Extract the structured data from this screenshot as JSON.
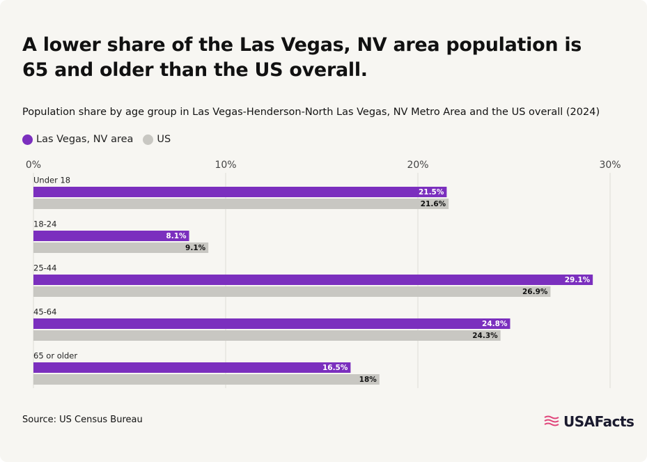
{
  "chart_data": {
    "type": "hbar",
    "title": "A lower share of the Las Vegas, NV area population is 65 and older than the US overall.",
    "subtitle": "Population share by age group in Las Vegas-Henderson-North Las Vegas, NV Metro Area and the US overall (2024)",
    "categories": [
      "Under 18",
      "18-24",
      "25-44",
      "45-64",
      "65 or older"
    ],
    "series": [
      {
        "name": "Las Vegas, NV area",
        "color": "#7b2fbe",
        "values": [
          21.5,
          8.1,
          29.1,
          24.8,
          16.5
        ],
        "value_labels": [
          "21.5%",
          "8.1%",
          "29.1%",
          "24.8%",
          "16.5%"
        ]
      },
      {
        "name": "US",
        "color": "#c8c7c2",
        "values": [
          21.6,
          9.1,
          26.9,
          24.3,
          18
        ],
        "value_labels": [
          "21.6%",
          "9.1%",
          "26.9%",
          "24.3%",
          "18%"
        ]
      }
    ],
    "xlim": [
      0,
      30
    ],
    "xticks": [
      {
        "value": 0,
        "label": "0%"
      },
      {
        "value": 10,
        "label": "10%"
      },
      {
        "value": 20,
        "label": "20%"
      },
      {
        "value": 30,
        "label": "30%"
      }
    ],
    "grid": true,
    "legend": "top",
    "source": "Source: US Census Bureau",
    "logo": "USAFacts"
  }
}
